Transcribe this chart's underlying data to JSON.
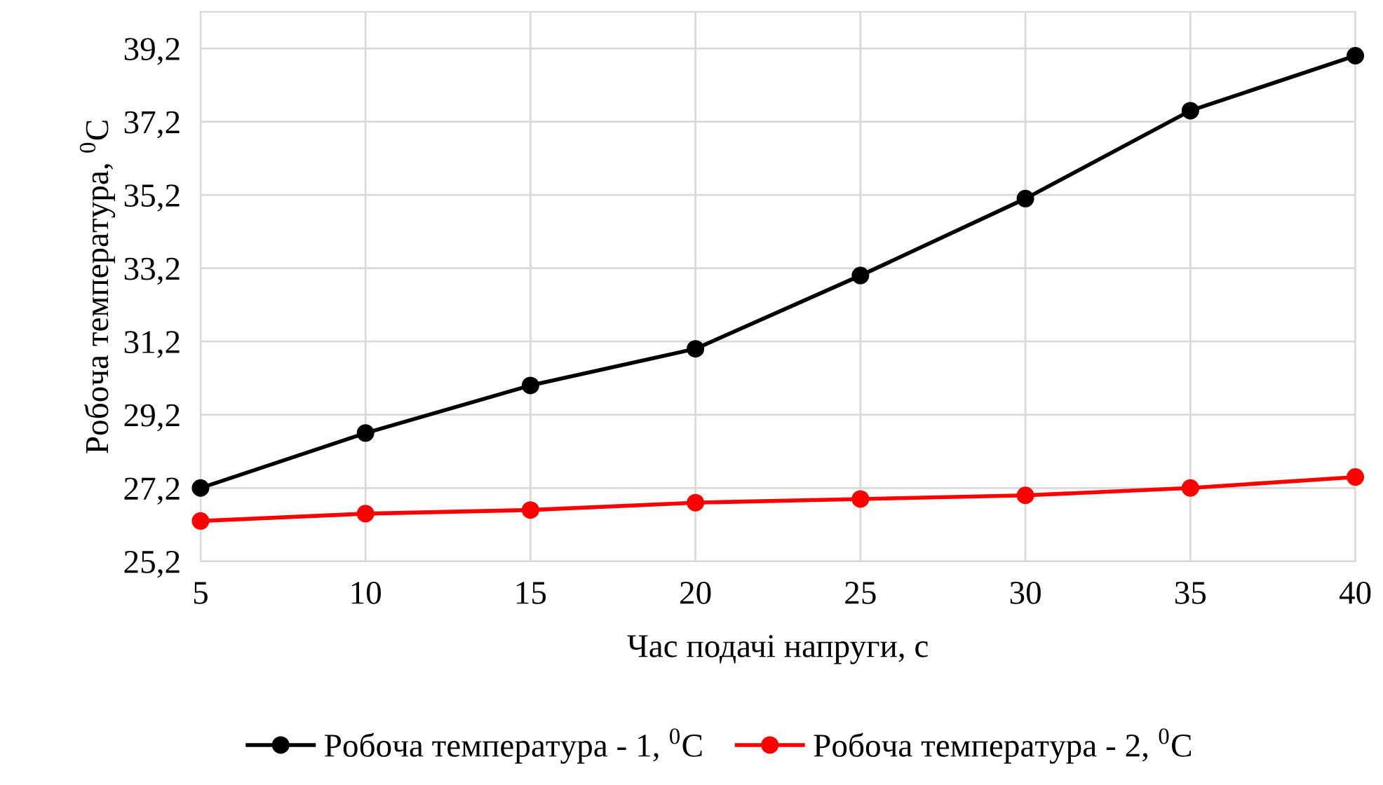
{
  "chart_data": {
    "type": "line",
    "xlabel": "Час подачі напруги, с",
    "ylabel": "Робоча температура, $^{0}$С",
    "x": [
      5,
      10,
      15,
      20,
      25,
      30,
      35,
      40
    ],
    "series": [
      {
        "name": "Робоча температура - 1, $^{0}$С",
        "color": "#000000",
        "values": [
          27.2,
          28.7,
          30.0,
          31.0,
          33.0,
          35.1,
          37.5,
          39.0
        ]
      },
      {
        "name": "Робоча температура - 2, $^{0}$С",
        "color": "#ff0000",
        "values": [
          26.3,
          26.5,
          26.6,
          26.8,
          26.9,
          27.0,
          27.2,
          27.5
        ]
      }
    ],
    "xlim": [
      5,
      40
    ],
    "xticks": [
      5,
      10,
      15,
      20,
      25,
      30,
      35,
      40
    ],
    "ylim": [
      25.2,
      40.2
    ],
    "yticks": [
      {
        "value": 25.2,
        "label": "25,2"
      },
      {
        "value": 27.2,
        "label": "27,2"
      },
      {
        "value": 29.2,
        "label": "29,2"
      },
      {
        "value": 31.2,
        "label": "31,2"
      },
      {
        "value": 33.2,
        "label": "33,2"
      },
      {
        "value": 35.2,
        "label": "35,2"
      },
      {
        "value": 37.2,
        "label": "37,2"
      },
      {
        "value": 39.2,
        "label": "39,2"
      }
    ],
    "grid": true,
    "legend": "bottom",
    "marker": "circle",
    "line_style": "solid"
  }
}
